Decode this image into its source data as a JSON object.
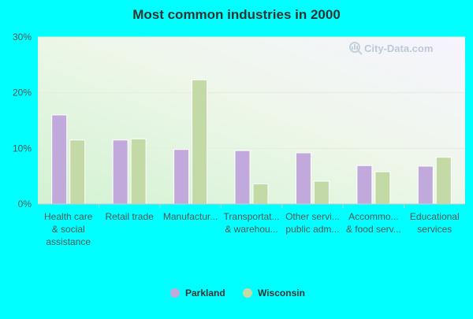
{
  "chart_data": {
    "type": "bar",
    "title": "Most common industries in 2000",
    "categories": [
      [
        "Health care",
        "& social",
        "assistance"
      ],
      [
        "Retail trade"
      ],
      [
        "Manufactur..."
      ],
      [
        "Transportat...",
        "& warehou..."
      ],
      [
        "Other servi...",
        "public adm..."
      ],
      [
        "Accommo...",
        "& food serv..."
      ],
      [
        "Educational",
        "services"
      ]
    ],
    "series": [
      {
        "name": "Parkland",
        "values": [
          16.0,
          11.5,
          9.8,
          9.6,
          9.2,
          6.9,
          6.8
        ]
      },
      {
        "name": "Wisconsin",
        "values": [
          11.5,
          11.7,
          22.3,
          3.6,
          4.1,
          5.8,
          8.4
        ]
      }
    ],
    "ylim": [
      0,
      30
    ],
    "yticks": [
      "0%",
      "10%",
      "20%",
      "30%"
    ],
    "xlabel": "",
    "ylabel": "",
    "legend_position": "bottom",
    "grid": true,
    "watermark": "City-Data.com",
    "colors": {
      "page_background": "#00FFFF",
      "Parkland": "#C1A9DB",
      "Wisconsin": "#C3D9A6",
      "axis": "#cccccc",
      "gridline": "#e6ecdf",
      "tick_label": "#555555",
      "title": "#333333"
    }
  }
}
